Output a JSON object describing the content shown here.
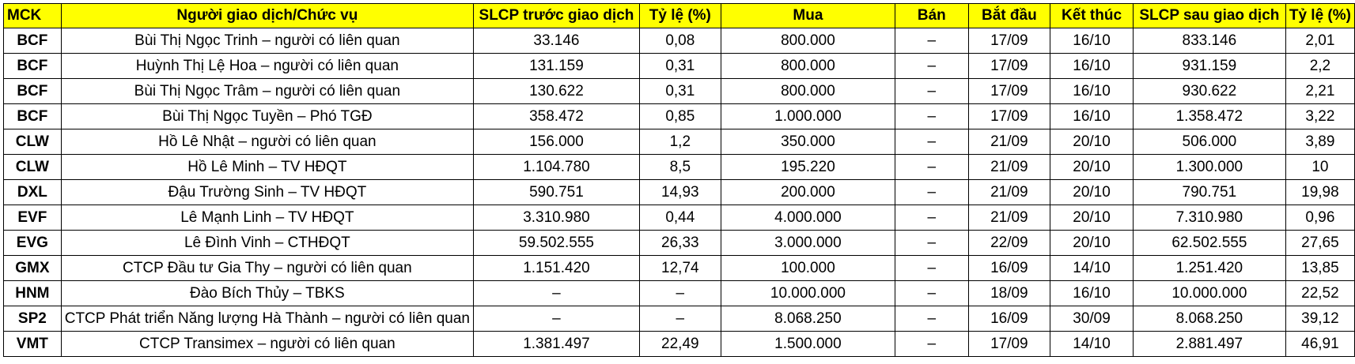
{
  "table": {
    "headers": [
      "MCK",
      "Người giao dịch/Chức vụ",
      "SLCP trước giao dịch",
      "Tỷ lệ (%)",
      "Mua",
      "Bán",
      "Bắt đầu",
      "Kết thúc",
      "SLCP sau giao dịch",
      "Tỷ lệ (%)"
    ],
    "header_color": "#ffff00",
    "rows": [
      [
        "BCF",
        "Bùi Thị Ngọc Trinh – người có liên quan",
        "33.146",
        "0,08",
        "800.000",
        "–",
        "17/09",
        "16/10",
        "833.146",
        "2,01"
      ],
      [
        "BCF",
        "Huỳnh Thị Lệ Hoa – người có liên quan",
        "131.159",
        "0,31",
        "800.000",
        "–",
        "17/09",
        "16/10",
        "931.159",
        "2,2"
      ],
      [
        "BCF",
        "Bùi Thị Ngọc Trâm – người có liên quan",
        "130.622",
        "0,31",
        "800.000",
        "–",
        "17/09",
        "16/10",
        "930.622",
        "2,21"
      ],
      [
        "BCF",
        "Bùi Thị Ngọc Tuyền – Phó TGĐ",
        "358.472",
        "0,85",
        "1.000.000",
        "–",
        "17/09",
        "16/10",
        "1.358.472",
        "3,22"
      ],
      [
        "CLW",
        "Hồ Lê Nhật – người có liên quan",
        "156.000",
        "1,2",
        "350.000",
        "–",
        "21/09",
        "20/10",
        "506.000",
        "3,89"
      ],
      [
        "CLW",
        "Hồ Lê Minh – TV HĐQT",
        "1.104.780",
        "8,5",
        "195.220",
        "–",
        "21/09",
        "20/10",
        "1.300.000",
        "10"
      ],
      [
        "DXL",
        "Đậu Trường Sinh – TV HĐQT",
        "590.751",
        "14,93",
        "200.000",
        "–",
        "21/09",
        "20/10",
        "790.751",
        "19,98"
      ],
      [
        "EVF",
        "Lê Mạnh Linh – TV HĐQT",
        "3.310.980",
        "0,44",
        "4.000.000",
        "–",
        "21/09",
        "20/10",
        "7.310.980",
        "0,96"
      ],
      [
        "EVG",
        "Lê Đình Vinh – CTHĐQT",
        "59.502.555",
        "26,33",
        "3.000.000",
        "–",
        "22/09",
        "20/10",
        "62.502.555",
        "27,65"
      ],
      [
        "GMX",
        "CTCP Đầu tư Gia Thy – người có liên quan",
        "1.151.420",
        "12,74",
        "100.000",
        "–",
        "16/09",
        "14/10",
        "1.251.420",
        "13,85"
      ],
      [
        "HNM",
        "Đào Bích Thủy – TBKS",
        "–",
        "–",
        "10.000.000",
        "–",
        "18/09",
        "16/10",
        "10.000.000",
        "22,52"
      ],
      [
        "SP2",
        "CTCP Phát triển Năng lượng Hà Thành – người có liên quan",
        "–",
        "–",
        "8.068.250",
        "–",
        "16/09",
        "30/09",
        "8.068.250",
        "39,12"
      ],
      [
        "VMT",
        "CTCP Transimex – người có liên quan",
        "1.381.497",
        "22,49",
        "1.500.000",
        "–",
        "17/09",
        "14/10",
        "2.881.497",
        "46,91"
      ]
    ]
  }
}
